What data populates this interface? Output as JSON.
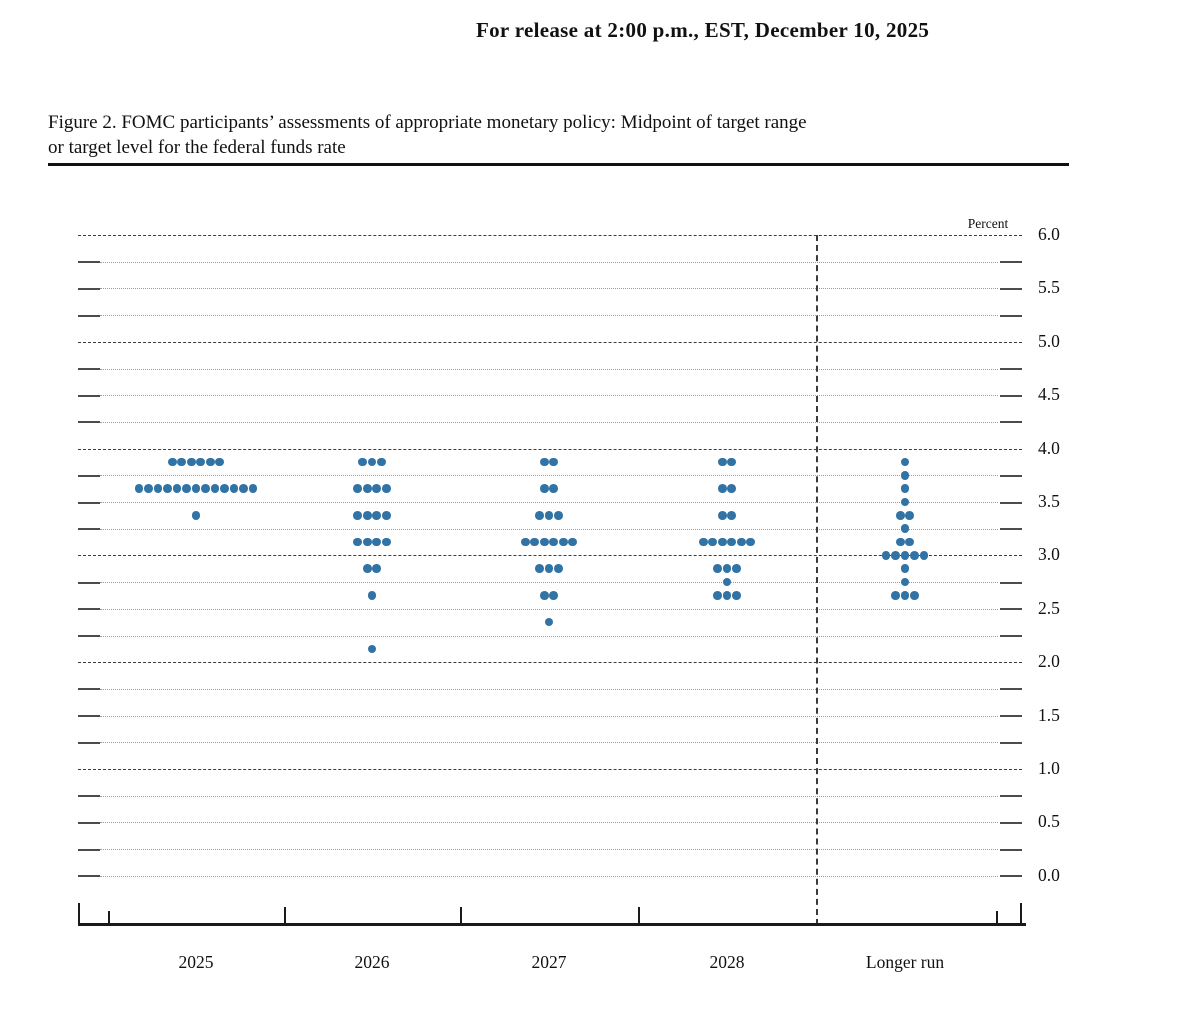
{
  "header": {
    "release_line": "For release at 2:00 p.m., EST, December 10, 2025"
  },
  "figure": {
    "title_line1": "Figure 2. FOMC participants’ assessments of appropriate monetary policy: Midpoint of target range",
    "title_line2": "or target level for the federal funds rate"
  },
  "chart_data": {
    "type": "scatter",
    "subtype": "fomc-dot-plot",
    "unit_label": "Percent",
    "dot_color": "#3273A6",
    "ylim": [
      0.0,
      6.0
    ],
    "grid_step": 0.25,
    "label_step": 0.5,
    "grid_on": true,
    "y_tick_labels": [
      "6.0",
      "5.5",
      "5.0",
      "4.5",
      "4.0",
      "3.5",
      "3.0",
      "2.5",
      "2.0",
      "1.5",
      "1.0",
      "0.5",
      "0.0"
    ],
    "categories": [
      "2025",
      "2026",
      "2027",
      "2028",
      "Longer run"
    ],
    "separator_before_category": "Longer run",
    "dots": [
      {
        "category": "2025",
        "values": [
          {
            "rate": 3.875,
            "count": 6
          },
          {
            "rate": 3.625,
            "count": 13
          },
          {
            "rate": 3.375,
            "count": 1
          }
        ]
      },
      {
        "category": "2026",
        "values": [
          {
            "rate": 3.875,
            "count": 3
          },
          {
            "rate": 3.625,
            "count": 4
          },
          {
            "rate": 3.375,
            "count": 4
          },
          {
            "rate": 3.125,
            "count": 4
          },
          {
            "rate": 2.875,
            "count": 2
          },
          {
            "rate": 2.625,
            "count": 1
          },
          {
            "rate": 2.125,
            "count": 1
          }
        ]
      },
      {
        "category": "2027",
        "values": [
          {
            "rate": 3.875,
            "count": 2
          },
          {
            "rate": 3.625,
            "count": 2
          },
          {
            "rate": 3.375,
            "count": 3
          },
          {
            "rate": 3.125,
            "count": 6
          },
          {
            "rate": 2.875,
            "count": 3
          },
          {
            "rate": 2.625,
            "count": 2
          },
          {
            "rate": 2.375,
            "count": 1
          }
        ]
      },
      {
        "category": "2028",
        "values": [
          {
            "rate": 3.875,
            "count": 2
          },
          {
            "rate": 3.625,
            "count": 2
          },
          {
            "rate": 3.375,
            "count": 2
          },
          {
            "rate": 3.125,
            "count": 6
          },
          {
            "rate": 2.875,
            "count": 3
          },
          {
            "rate": 2.75,
            "count": 1
          },
          {
            "rate": 2.625,
            "count": 3
          }
        ]
      },
      {
        "category": "Longer run",
        "values": [
          {
            "rate": 3.875,
            "count": 1
          },
          {
            "rate": 3.75,
            "count": 1
          },
          {
            "rate": 3.625,
            "count": 1
          },
          {
            "rate": 3.5,
            "count": 1
          },
          {
            "rate": 3.375,
            "count": 2
          },
          {
            "rate": 3.25,
            "count": 1
          },
          {
            "rate": 3.125,
            "count": 2
          },
          {
            "rate": 3.0,
            "count": 5
          },
          {
            "rate": 2.875,
            "count": 1
          },
          {
            "rate": 2.75,
            "count": 1
          },
          {
            "rate": 2.625,
            "count": 3
          }
        ]
      }
    ]
  }
}
